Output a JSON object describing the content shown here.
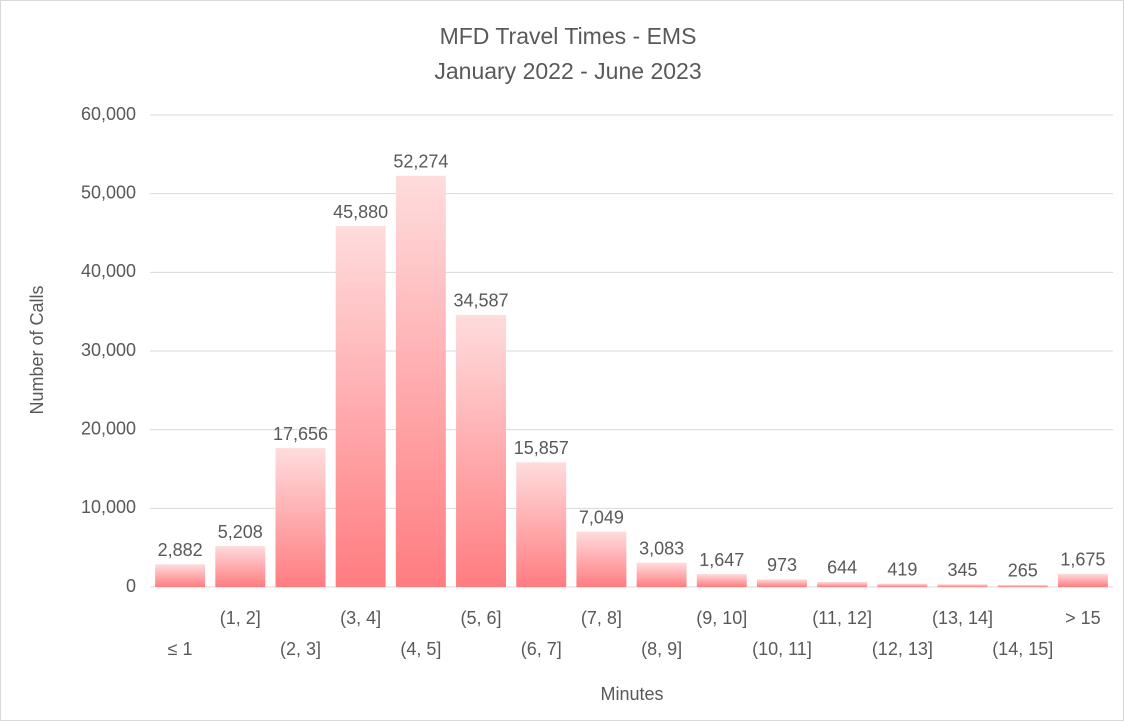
{
  "chart_data": {
    "type": "bar",
    "title": "MFD Travel Times - EMS",
    "subtitle": "January 2022 - June 2023",
    "x_label": "Minutes",
    "y_label": "Number of Calls",
    "categories": [
      "≤ 1",
      "(1, 2]",
      "(2, 3]",
      "(3, 4]",
      "(4, 5]",
      "(5, 6]",
      "(6, 7]",
      "(7, 8]",
      "(8, 9]",
      "(9, 10]",
      "(10, 11]",
      "(11, 12]",
      "(12, 13]",
      "(13, 14]",
      "(14, 15]",
      "> 15"
    ],
    "values": [
      2882,
      5208,
      17656,
      45880,
      52274,
      34587,
      15857,
      7049,
      3083,
      1647,
      973,
      644,
      419,
      345,
      265,
      1675
    ],
    "value_labels": [
      "2,882",
      "5,208",
      "17,656",
      "45,880",
      "52,274",
      "34,587",
      "15,857",
      "7,049",
      "3,083",
      "1,647",
      "973",
      "644",
      "419",
      "345",
      "265",
      "1,675"
    ],
    "color": "#ff7c80",
    "ylim": [
      0,
      60000
    ],
    "yticks": [
      0,
      {
        "value": 10000,
        "label": "10,000"
      },
      {
        "value": 20000,
        "label": "20,000"
      },
      {
        "value": 30000,
        "label": "30,000"
      },
      {
        "value": 40000,
        "label": "40,000"
      },
      {
        "value": 50000,
        "label": "50,000"
      },
      {
        "value": 60000,
        "label": "60,000"
      }
    ],
    "grid": true
  }
}
